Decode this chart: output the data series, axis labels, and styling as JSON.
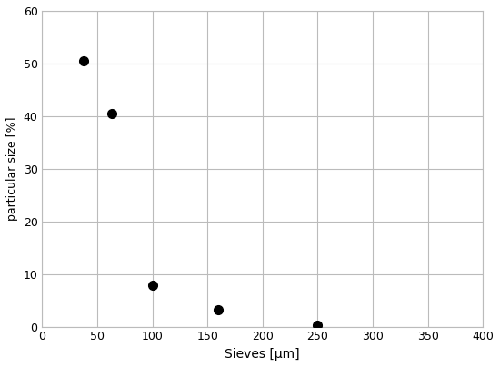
{
  "x_values": [
    38,
    63,
    100,
    160,
    250
  ],
  "y_values": [
    50.5,
    40.5,
    7.8,
    3.2,
    0.3
  ],
  "xlabel": "Sieves [μm]",
  "ylabel": "particular size [%]",
  "xlim": [
    0,
    400
  ],
  "ylim": [
    0,
    60
  ],
  "xticks": [
    0,
    50,
    100,
    150,
    200,
    250,
    300,
    350,
    400
  ],
  "yticks": [
    0,
    10,
    20,
    30,
    40,
    50,
    60
  ],
  "marker_color": "black",
  "marker_size": 7,
  "grid_color": "#bbbbbb",
  "background_color": "#ffffff",
  "xlabel_fontsize": 10,
  "ylabel_fontsize": 9,
  "tick_fontsize": 9
}
